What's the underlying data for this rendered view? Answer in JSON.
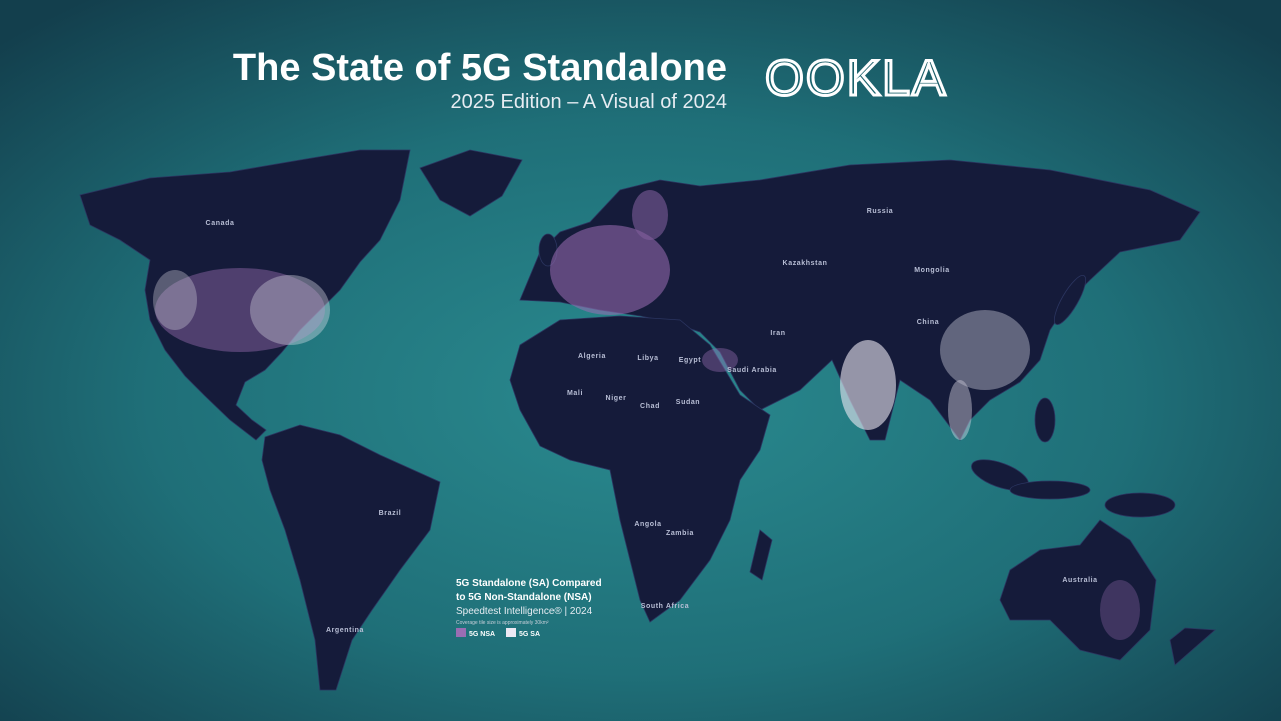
{
  "header": {
    "title": "The State of 5G Standalone",
    "subtitle": "2025 Edition – A Visual of 2024",
    "logo": "OOKLA"
  },
  "legend": {
    "title_lines": [
      "5G Standalone (SA) Compared",
      "to 5G Non-Standalone (NSA)"
    ],
    "source": "Speedtest Intelligence® | 2024",
    "note": "Coverage tile size is approximately 30km²",
    "items": [
      {
        "label": "5G NSA",
        "color": "#9a6db3"
      },
      {
        "label": "5G SA",
        "color": "#ece8f3"
      }
    ]
  },
  "map": {
    "labels": [
      "Canada",
      "Russia",
      "Kazakhstan",
      "Mongolia",
      "China",
      "Iran",
      "Algeria",
      "Libya",
      "Egypt",
      "Mali",
      "Niger",
      "Chad",
      "Sudan",
      "Brazil",
      "Argentina",
      "Australia",
      "Angola",
      "Zambia",
      "South Africa",
      "Saudi Arabia"
    ]
  }
}
